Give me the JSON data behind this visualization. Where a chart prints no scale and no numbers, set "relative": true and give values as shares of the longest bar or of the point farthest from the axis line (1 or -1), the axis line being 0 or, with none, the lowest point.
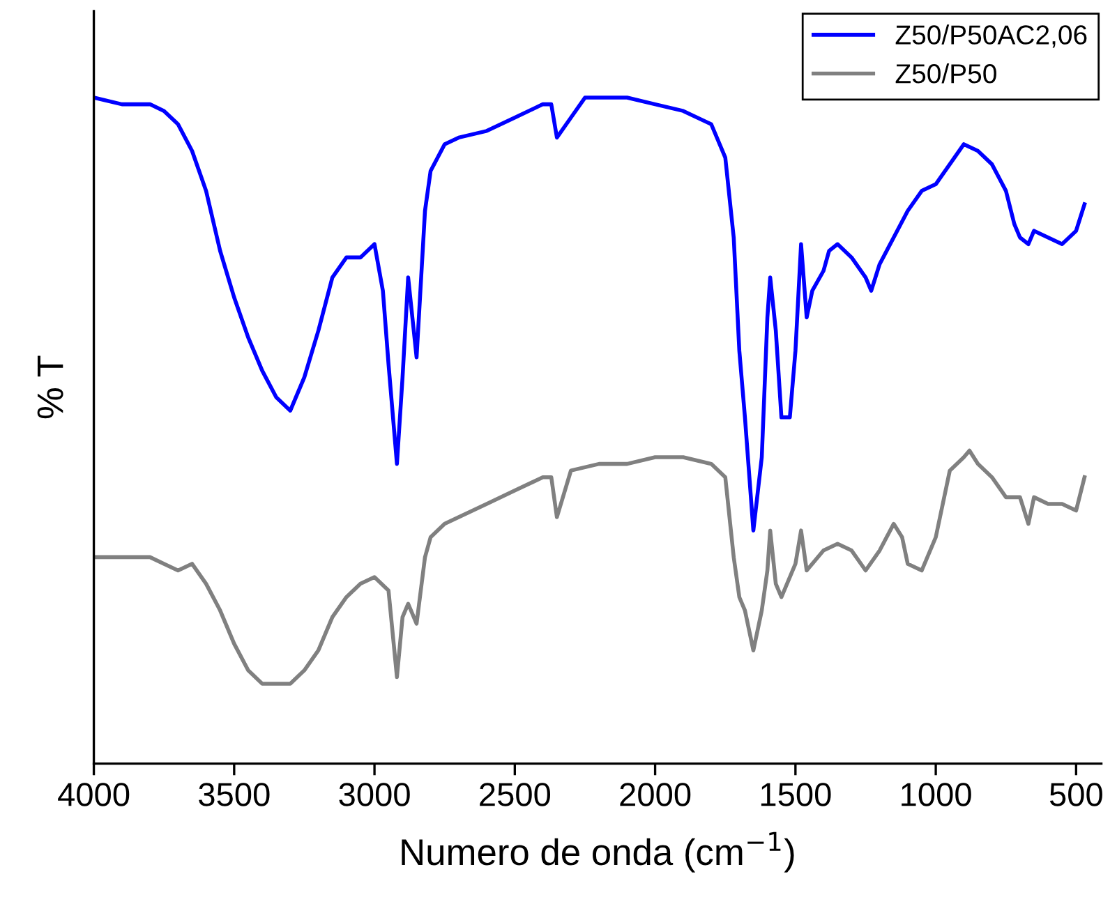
{
  "chart_data": {
    "type": "line",
    "relative": true,
    "xlabel": "Numero de onda (cm$^{−1}$)",
    "ylabel": "% T",
    "xlim": [
      4000,
      410
    ],
    "xticks": [
      4000,
      3500,
      3000,
      2500,
      2000,
      1500,
      1000,
      500
    ],
    "tick_labels": "x",
    "legend": "top right",
    "grid": false,
    "marker": "none",
    "line_style": "solid",
    "series": [
      {
        "name": "Z50/P50AC2,06",
        "color": "#0000ff",
        "x": [
          4000,
          3900,
          3800,
          3750,
          3700,
          3650,
          3600,
          3550,
          3500,
          3450,
          3400,
          3350,
          3300,
          3250,
          3200,
          3150,
          3100,
          3050,
          3000,
          2970,
          2950,
          2920,
          2900,
          2880,
          2850,
          2820,
          2800,
          2750,
          2700,
          2600,
          2500,
          2400,
          2370,
          2350,
          2300,
          2250,
          2200,
          2100,
          2000,
          1900,
          1800,
          1750,
          1720,
          1700,
          1680,
          1650,
          1620,
          1600,
          1590,
          1570,
          1550,
          1520,
          1500,
          1480,
          1460,
          1440,
          1400,
          1380,
          1350,
          1300,
          1250,
          1230,
          1200,
          1150,
          1100,
          1050,
          1000,
          950,
          900,
          850,
          800,
          750,
          720,
          700,
          670,
          650,
          600,
          550,
          500,
          470
        ],
        "values": [
          1.0,
          0.99,
          0.99,
          0.98,
          0.96,
          0.92,
          0.86,
          0.77,
          0.7,
          0.64,
          0.59,
          0.55,
          0.53,
          0.58,
          0.65,
          0.73,
          0.76,
          0.76,
          0.78,
          0.71,
          0.6,
          0.45,
          0.58,
          0.73,
          0.61,
          0.83,
          0.89,
          0.93,
          0.94,
          0.95,
          0.97,
          0.99,
          0.99,
          0.94,
          0.97,
          1.0,
          1.0,
          1.0,
          0.99,
          0.98,
          0.96,
          0.91,
          0.79,
          0.62,
          0.52,
          0.35,
          0.46,
          0.67,
          0.73,
          0.65,
          0.52,
          0.52,
          0.62,
          0.78,
          0.67,
          0.71,
          0.74,
          0.77,
          0.78,
          0.76,
          0.73,
          0.71,
          0.75,
          0.79,
          0.83,
          0.86,
          0.87,
          0.9,
          0.93,
          0.92,
          0.9,
          0.86,
          0.81,
          0.79,
          0.78,
          0.8,
          0.79,
          0.78,
          0.8,
          0.84
        ]
      },
      {
        "name": "Z50/P50",
        "color": "#808080",
        "x": [
          4000,
          3900,
          3800,
          3750,
          3700,
          3650,
          3600,
          3550,
          3500,
          3450,
          3400,
          3350,
          3300,
          3250,
          3200,
          3150,
          3100,
          3050,
          3000,
          2950,
          2920,
          2900,
          2880,
          2850,
          2820,
          2800,
          2750,
          2700,
          2600,
          2500,
          2400,
          2370,
          2350,
          2300,
          2200,
          2100,
          2000,
          1900,
          1800,
          1750,
          1720,
          1700,
          1680,
          1650,
          1620,
          1600,
          1590,
          1570,
          1550,
          1500,
          1480,
          1460,
          1400,
          1350,
          1300,
          1250,
          1200,
          1150,
          1120,
          1100,
          1050,
          1000,
          950,
          900,
          880,
          850,
          800,
          750,
          700,
          670,
          650,
          600,
          550,
          500,
          470
        ],
        "values": [
          0.31,
          0.31,
          0.31,
          0.3,
          0.29,
          0.3,
          0.27,
          0.23,
          0.18,
          0.14,
          0.12,
          0.12,
          0.12,
          0.14,
          0.17,
          0.22,
          0.25,
          0.27,
          0.28,
          0.26,
          0.13,
          0.22,
          0.24,
          0.21,
          0.31,
          0.34,
          0.36,
          0.37,
          0.39,
          0.41,
          0.43,
          0.43,
          0.37,
          0.44,
          0.45,
          0.45,
          0.46,
          0.46,
          0.45,
          0.43,
          0.31,
          0.25,
          0.23,
          0.17,
          0.23,
          0.29,
          0.35,
          0.27,
          0.25,
          0.3,
          0.35,
          0.29,
          0.32,
          0.33,
          0.32,
          0.29,
          0.32,
          0.36,
          0.34,
          0.3,
          0.29,
          0.34,
          0.44,
          0.46,
          0.47,
          0.45,
          0.43,
          0.4,
          0.4,
          0.36,
          0.4,
          0.39,
          0.39,
          0.38,
          0.43
        ]
      }
    ]
  }
}
